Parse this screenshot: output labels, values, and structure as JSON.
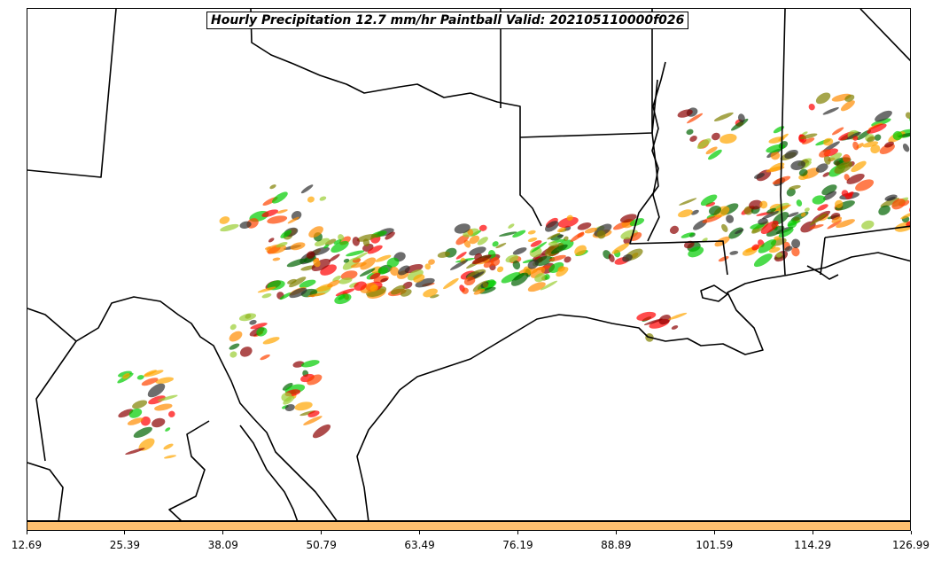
{
  "title": "Hourly Precipitation 12.7 mm/hr Paintball Valid: 202105110000f026",
  "colorbar": {
    "color": "#fdbf6f",
    "ticks": [
      "12.69",
      "25.39",
      "38.09",
      "50.79",
      "63.49",
      "76.19",
      "88.89",
      "101.59",
      "114.29",
      "126.99"
    ]
  },
  "member_colors": [
    "#8b0000",
    "#ff0000",
    "#ff8c00",
    "#ffa500",
    "#808000",
    "#9acd32",
    "#00cc00",
    "#006400",
    "#2f2f2f",
    "#ff4500"
  ]
}
